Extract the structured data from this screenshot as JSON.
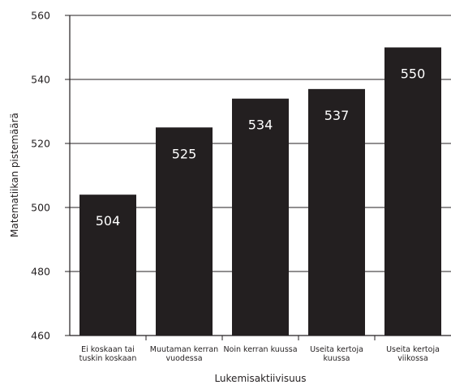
{
  "chart_data": {
    "type": "bar",
    "categories": [
      [
        "Ei koskaan tai",
        "tuskin koskaan"
      ],
      [
        "Muutaman kerran",
        "vuodessa"
      ],
      [
        "Noin kerran kuussa"
      ],
      [
        "Useita kertoja",
        "kuussa"
      ],
      [
        "Useita kertoja",
        "viikossa"
      ]
    ],
    "values": [
      504,
      525,
      534,
      537,
      550
    ],
    "data_labels": [
      "504",
      "525",
      "534",
      "537",
      "550"
    ],
    "title": "",
    "xlabel": "Lukemisaktiivisuus",
    "ylabel": "Matematiikan pistemäärä",
    "ylim": [
      460,
      560
    ],
    "yticks": [
      460,
      480,
      500,
      520,
      540,
      560
    ],
    "ytick_labels": [
      "460",
      "480",
      "500",
      "520",
      "540",
      "560"
    ],
    "grid": "horizontal",
    "bar_color": "#231f20",
    "value_label_color": "#ffffff",
    "grid_color": "#231f20"
  }
}
